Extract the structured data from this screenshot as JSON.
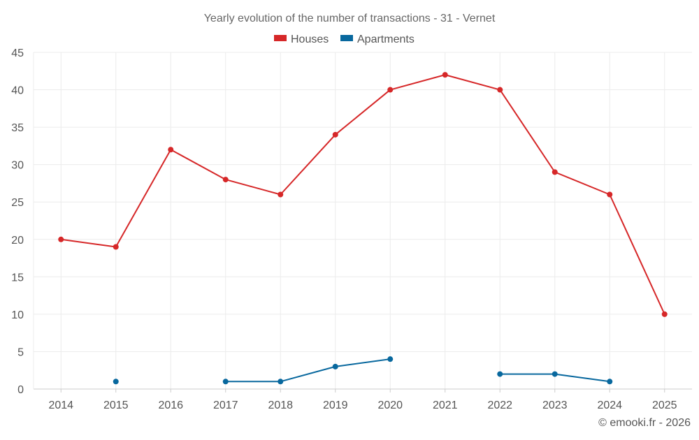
{
  "chart_data": {
    "type": "line",
    "title": "Yearly evolution of the number of transactions - 31 - Vernet",
    "categories": [
      "2014",
      "2015",
      "2016",
      "2017",
      "2018",
      "2019",
      "2020",
      "2021",
      "2022",
      "2023",
      "2024",
      "2025"
    ],
    "series": [
      {
        "name": "Houses",
        "color": "#d62728",
        "values": [
          20,
          19,
          32,
          28,
          26,
          34,
          40,
          42,
          40,
          29,
          26,
          10
        ]
      },
      {
        "name": "Apartments",
        "color": "#08689e",
        "values": [
          null,
          1,
          null,
          1,
          1,
          3,
          4,
          null,
          2,
          2,
          1,
          null
        ]
      }
    ],
    "yticks": [
      "0",
      "5",
      "10",
      "15",
      "20",
      "25",
      "30",
      "35",
      "40",
      "45"
    ],
    "ylim": [
      0,
      45
    ],
    "xlabel": "",
    "ylabel": "",
    "grid": true,
    "legend": "top-center"
  },
  "credit": "© emooki.fr - 2026"
}
